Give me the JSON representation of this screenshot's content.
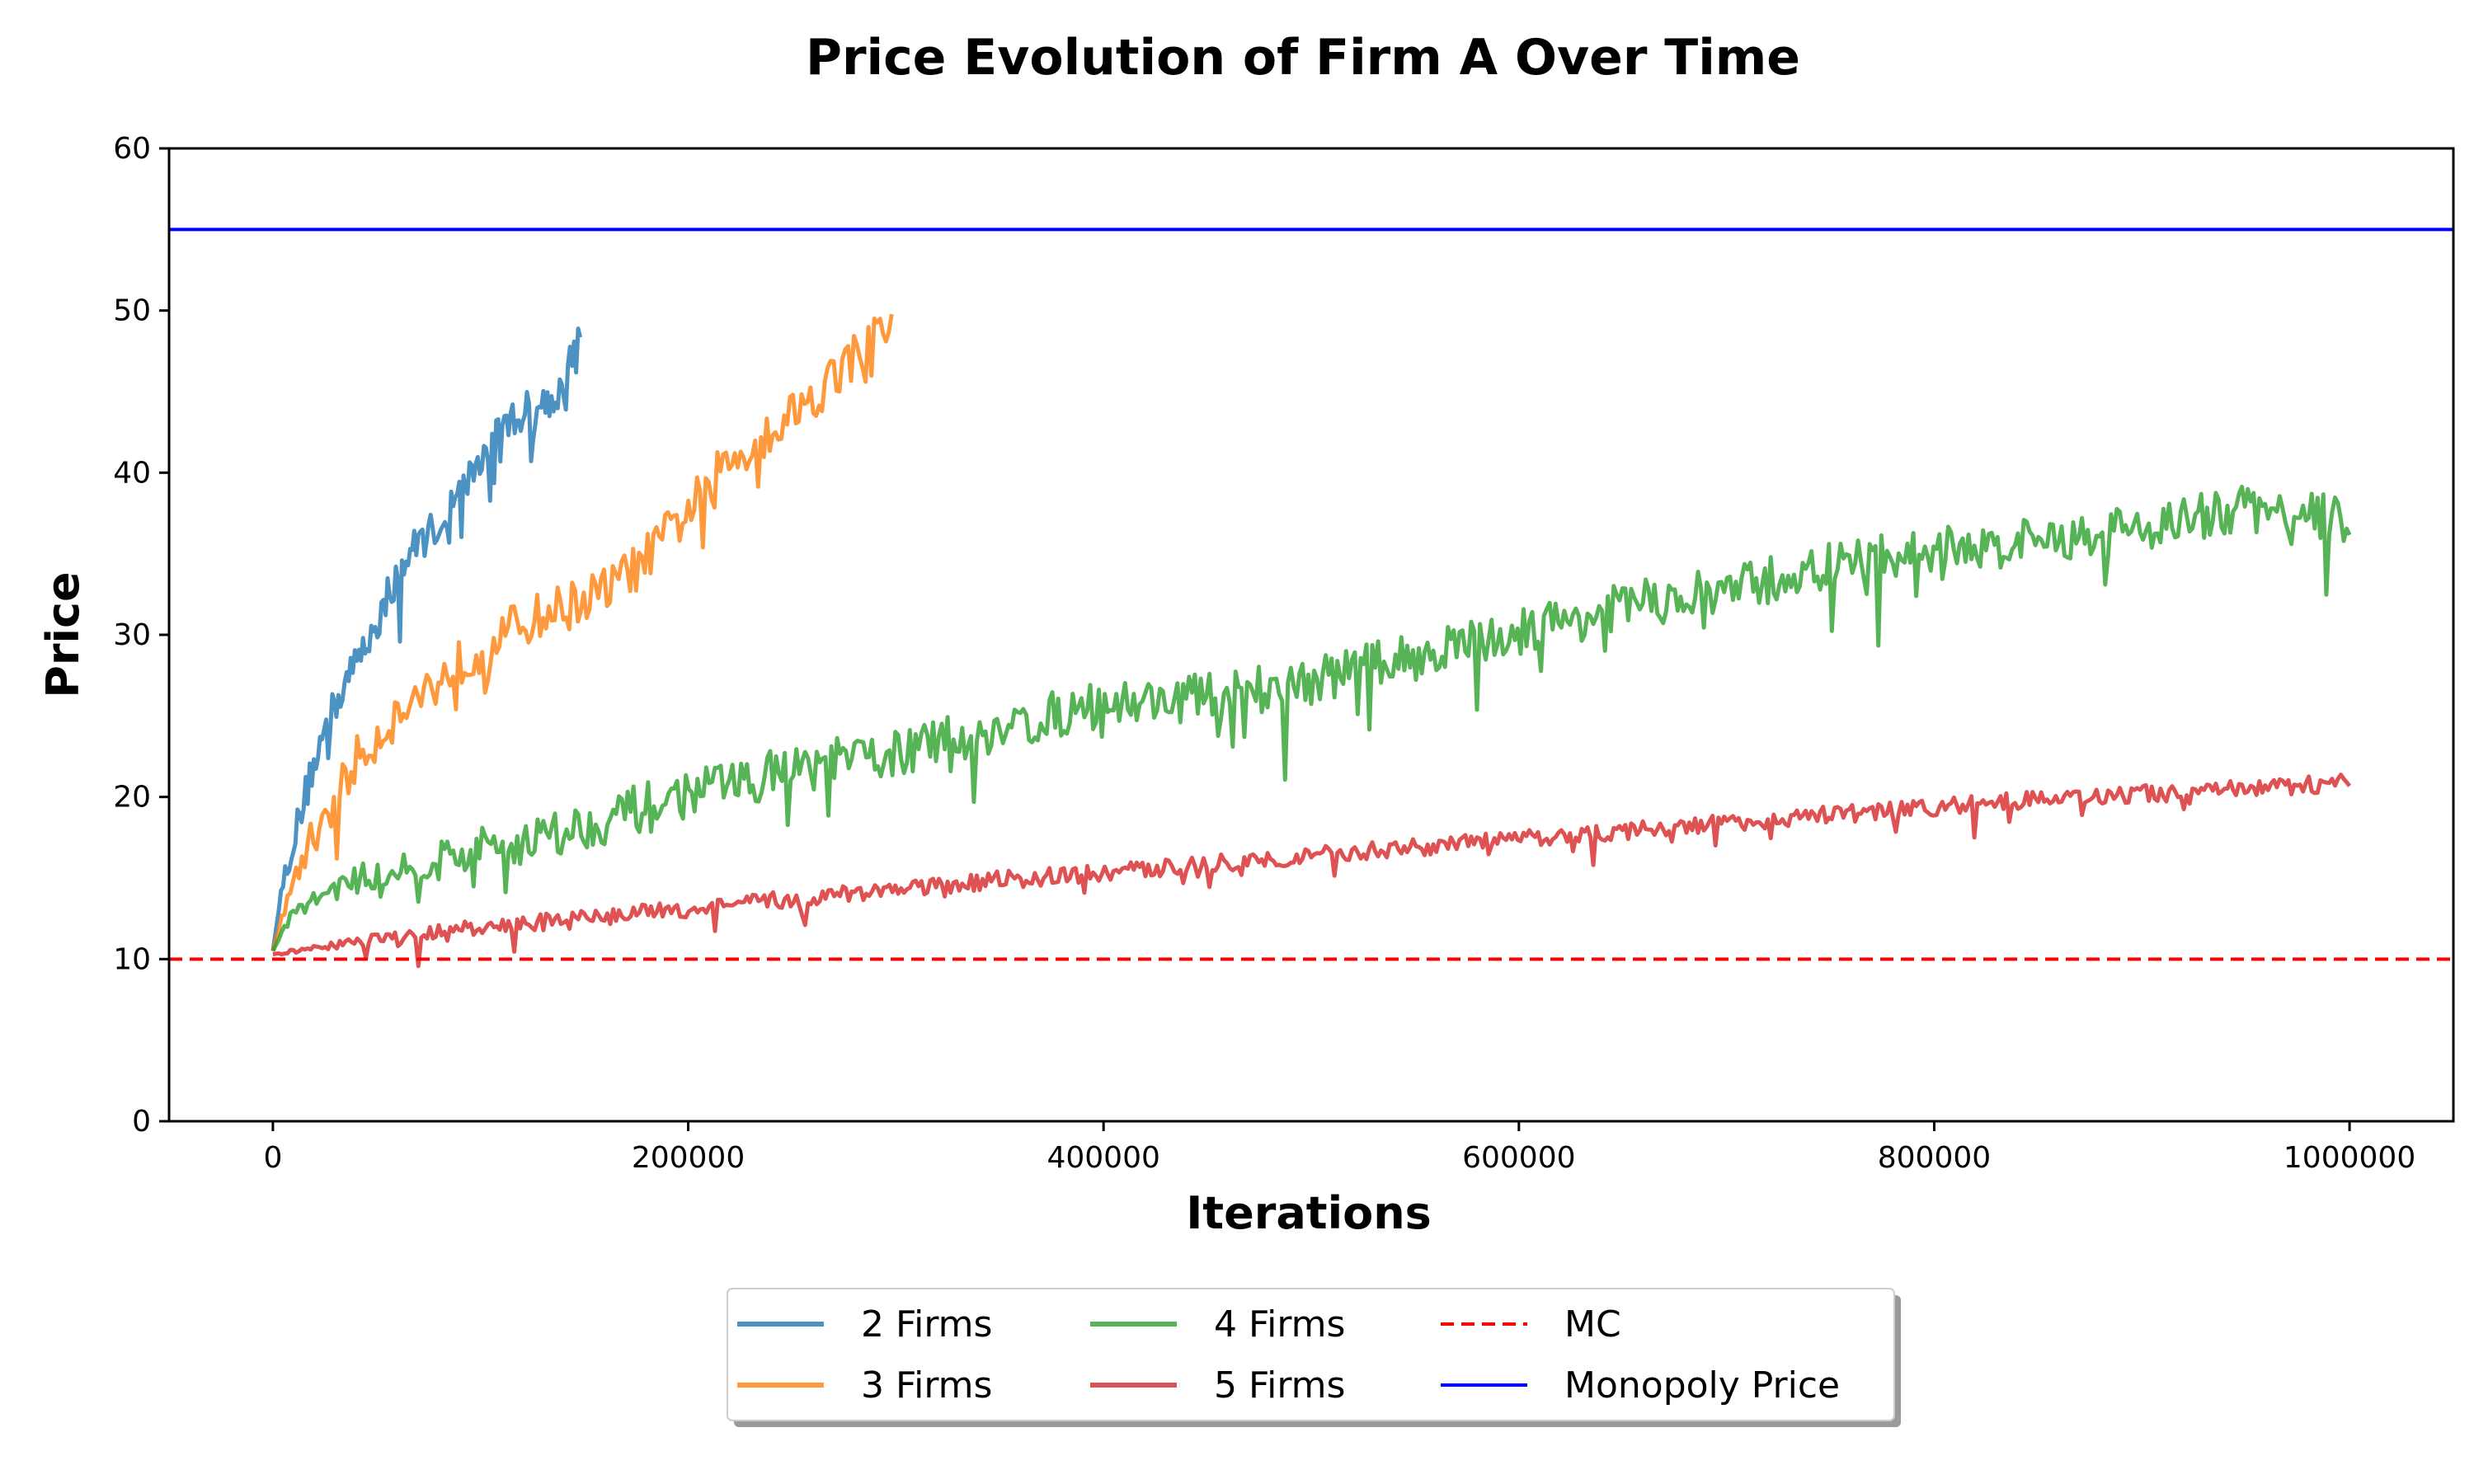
{
  "chart_data": {
    "type": "line",
    "title": "Price Evolution of Firm A Over Time",
    "xlabel": "Iterations",
    "ylabel": "Price",
    "xlim": [
      -50000,
      1050000
    ],
    "ylim": [
      0,
      60
    ],
    "xticks": [
      0,
      200000,
      400000,
      600000,
      800000,
      1000000
    ],
    "yticks": [
      0,
      10,
      20,
      30,
      40,
      50,
      60
    ],
    "grid": false,
    "legend_position": "bottom-center",
    "series": [
      {
        "name": "2 Firms",
        "color": "#1f77b4",
        "style": "noisy",
        "x": [
          0,
          5000,
          10000,
          15000,
          20000,
          30000,
          40000,
          50000,
          60000,
          70000,
          80000,
          90000,
          100000,
          110000,
          120000,
          130000,
          140000,
          148000
        ],
        "y": [
          10.5,
          15,
          17.5,
          20,
          22.5,
          26,
          28.5,
          31,
          34,
          36,
          37,
          39,
          41,
          43,
          44,
          44.5,
          45.5,
          49
        ],
        "noise_down": 4
      },
      {
        "name": "3 Firms",
        "color": "#ff7f0e",
        "style": "noisy",
        "x": [
          0,
          10000,
          20000,
          40000,
          60000,
          80000,
          100000,
          120000,
          140000,
          160000,
          180000,
          200000,
          220000,
          240000,
          260000,
          280000,
          298000
        ],
        "y": [
          10.5,
          15,
          18,
          22.5,
          25.5,
          27.5,
          29.5,
          31,
          32,
          33,
          35,
          38,
          41,
          43,
          45,
          47.5,
          49.5
        ],
        "noise_down": 5
      },
      {
        "name": "4 Firms",
        "color": "#2ca02c",
        "style": "noisy",
        "x": [
          0,
          10000,
          30000,
          50000,
          100000,
          150000,
          200000,
          250000,
          300000,
          350000,
          400000,
          450000,
          500000,
          550000,
          600000,
          650000,
          700000,
          750000,
          800000,
          850000,
          900000,
          950000,
          1000000
        ],
        "y": [
          10.5,
          13,
          14.5,
          15.5,
          17,
          18.5,
          20.5,
          22,
          23,
          24.5,
          26,
          26.5,
          27.5,
          29,
          30.5,
          32,
          33,
          34.5,
          35.5,
          36,
          37,
          38,
          37.5
        ],
        "noise_down": 5
      },
      {
        "name": "5 Firms",
        "color": "#d62728",
        "style": "noisy",
        "x": [
          0,
          50000,
          100000,
          150000,
          200000,
          250000,
          300000,
          350000,
          400000,
          450000,
          500000,
          550000,
          600000,
          650000,
          700000,
          750000,
          800000,
          850000,
          900000,
          950000,
          1000000
        ],
        "y": [
          10.3,
          11.3,
          12,
          12.6,
          13.2,
          13.8,
          14.4,
          15,
          15.4,
          16,
          16.5,
          17,
          17.5,
          18,
          18.5,
          19,
          19.5,
          20,
          20.3,
          20.6,
          21
        ],
        "noise_down": 1.8
      },
      {
        "name": "MC",
        "color": "#ff0000",
        "style": "hline-dashed",
        "y": 10
      },
      {
        "name": "Monopoly Price",
        "color": "#0000ff",
        "style": "hline",
        "y": 55
      }
    ]
  }
}
